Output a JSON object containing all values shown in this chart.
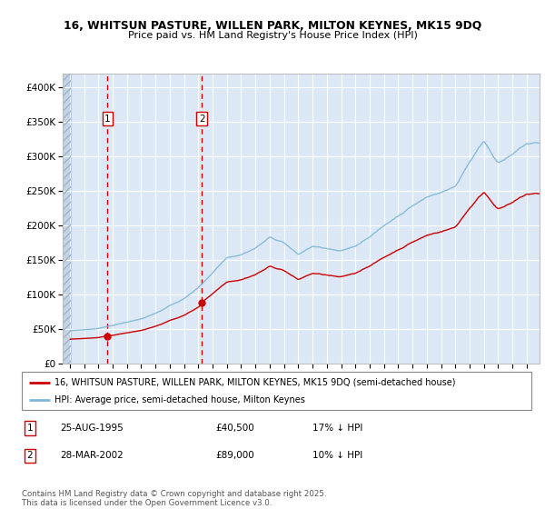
{
  "title_line1": "16, WHITSUN PASTURE, WILLEN PARK, MILTON KEYNES, MK15 9DQ",
  "title_line2": "Price paid vs. HM Land Registry's House Price Index (HPI)",
  "hpi_color": "#7db8d8",
  "price_color": "#cc0000",
  "bg_color": "#dce8f5",
  "shade_color": "#dce8f5",
  "purchase1_date": 1995.646,
  "purchase1_price": 40500,
  "purchase2_date": 2002.24,
  "purchase2_price": 89000,
  "legend_entry1": "16, WHITSUN PASTURE, WILLEN PARK, MILTON KEYNES, MK15 9DQ (semi-detached house)",
  "legend_entry2": "HPI: Average price, semi-detached house, Milton Keynes",
  "ylim": [
    0,
    420000
  ],
  "xlim_start": 1992.5,
  "xlim_end": 2025.9,
  "copyright": "Contains HM Land Registry data © Crown copyright and database right 2025.\nThis data is licensed under the Open Government Licence v3.0."
}
